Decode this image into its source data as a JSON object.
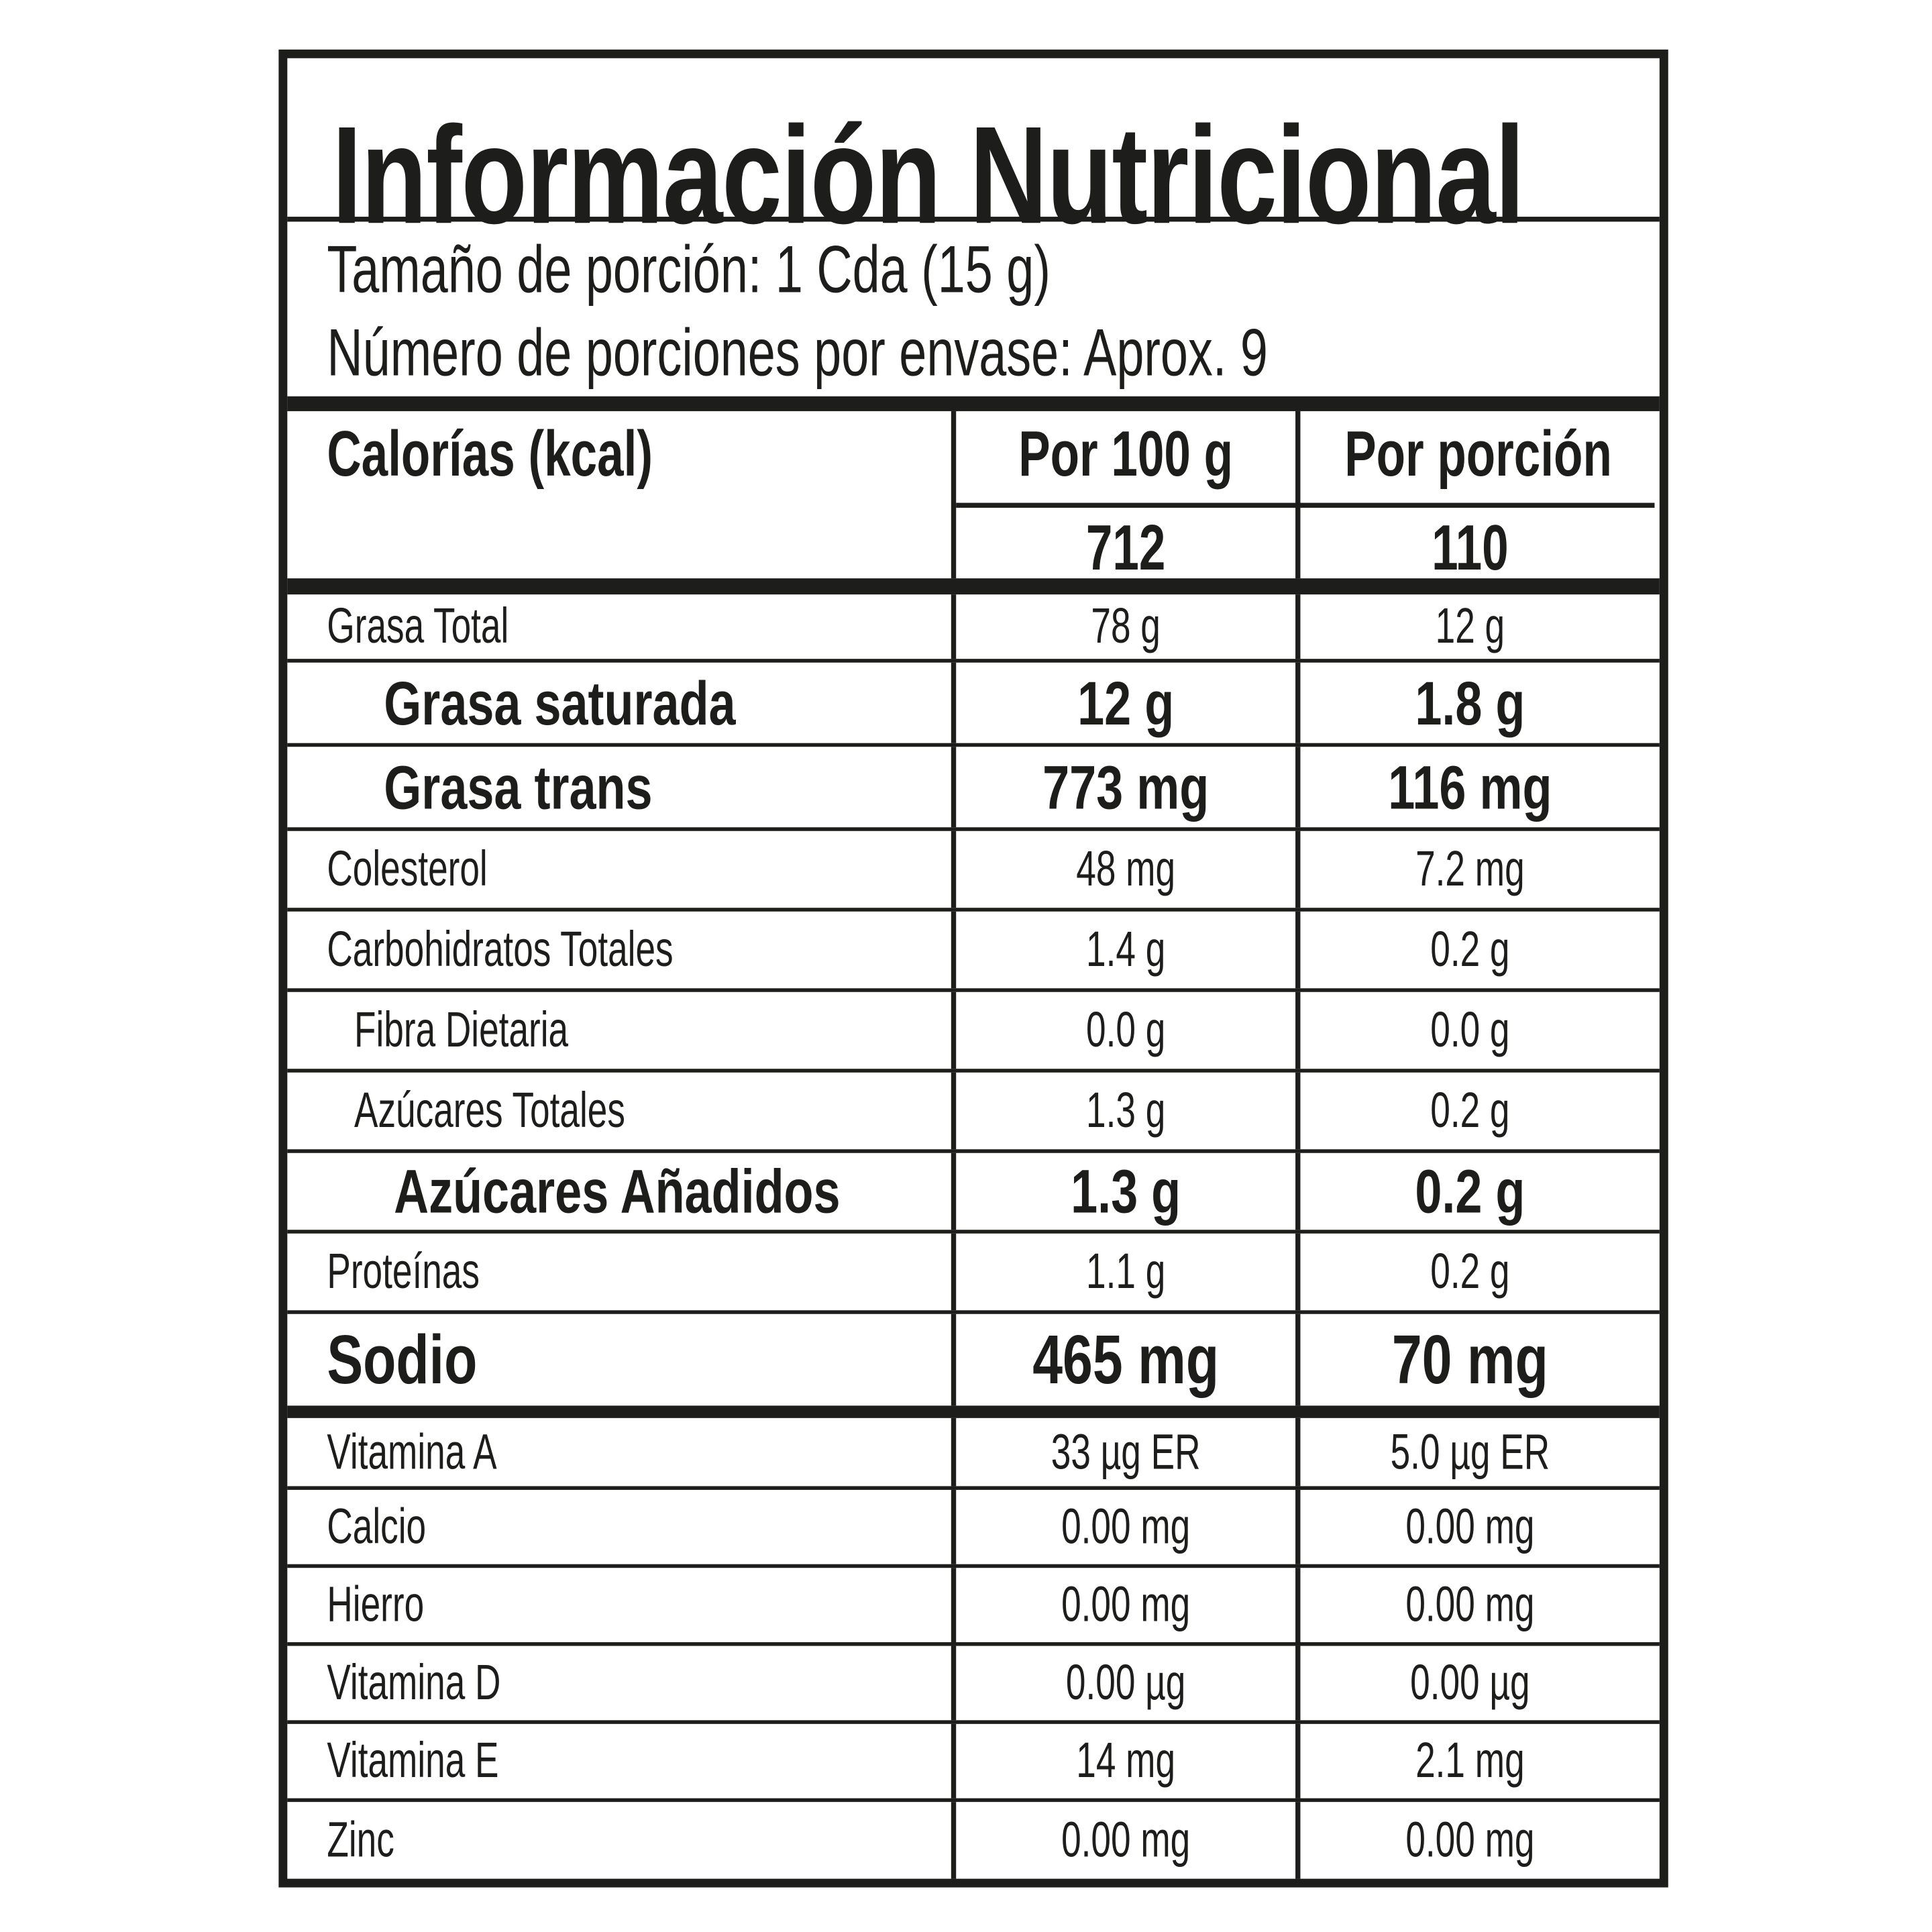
{
  "title": "Información Nutricional",
  "serving_size": "Tamaño de porción: 1 Cda (15 g)",
  "servings_per_container": "Número de porciones por envase: Aprox. 9",
  "calories": {
    "label": "Calorías (kcal)",
    "col_per_100g": "Por 100 g",
    "col_per_serving": "Por porción",
    "per_100g": "712",
    "per_serving": "110"
  },
  "nutrients": [
    {
      "label": "Grasa Total",
      "per_100g": "78 g",
      "per_serving": "12 g",
      "style": "normal",
      "indent": 0
    },
    {
      "label": "Grasa saturada",
      "per_100g": "12 g",
      "per_serving": "1.8 g",
      "style": "bold",
      "indent": 2
    },
    {
      "label": "Grasa trans",
      "per_100g": "773 mg",
      "per_serving": "116 mg",
      "style": "bold",
      "indent": 2
    },
    {
      "label": "Colesterol",
      "per_100g": "48 mg",
      "per_serving": "7.2 mg",
      "style": "normal",
      "indent": 0
    },
    {
      "label": "Carbohidratos Totales",
      "per_100g": "1.4 g",
      "per_serving": "0.2 g",
      "style": "normal",
      "indent": 0
    },
    {
      "label": "Fibra Dietaria",
      "per_100g": "0.0 g",
      "per_serving": "0.0 g",
      "style": "normal",
      "indent": 1
    },
    {
      "label": "Azúcares Totales",
      "per_100g": "1.3 g",
      "per_serving": "0.2 g",
      "style": "normal",
      "indent": 1
    },
    {
      "label": "Azúcares Añadidos",
      "per_100g": "1.3 g",
      "per_serving": "0.2 g",
      "style": "bold",
      "indent": 3
    },
    {
      "label": "Proteínas",
      "per_100g": "1.1 g",
      "per_serving": "0.2 g",
      "style": "normal",
      "indent": 0
    },
    {
      "label": "Sodio",
      "per_100g": "465 mg",
      "per_serving": "70 mg",
      "style": "bold",
      "indent": 0
    },
    {
      "label": "Vitamina A",
      "per_100g": "33 µg ER",
      "per_serving": "5.0 µg ER",
      "style": "normal",
      "indent": 0
    },
    {
      "label": "Calcio",
      "per_100g": "0.00 mg",
      "per_serving": "0.00 mg",
      "style": "normal",
      "indent": 0
    },
    {
      "label": "Hierro",
      "per_100g": "0.00 mg",
      "per_serving": "0.00 mg",
      "style": "normal",
      "indent": 0
    },
    {
      "label": "Vitamina D",
      "per_100g": "0.00 µg",
      "per_serving": "0.00 µg",
      "style": "normal",
      "indent": 0
    },
    {
      "label": "Vitamina E",
      "per_100g": "14 mg",
      "per_serving": "2.1 mg",
      "style": "normal",
      "indent": 0
    },
    {
      "label": "Zinc",
      "per_100g": "0.00 mg",
      "per_serving": "0.00 mg",
      "style": "normal",
      "indent": 0
    }
  ]
}
